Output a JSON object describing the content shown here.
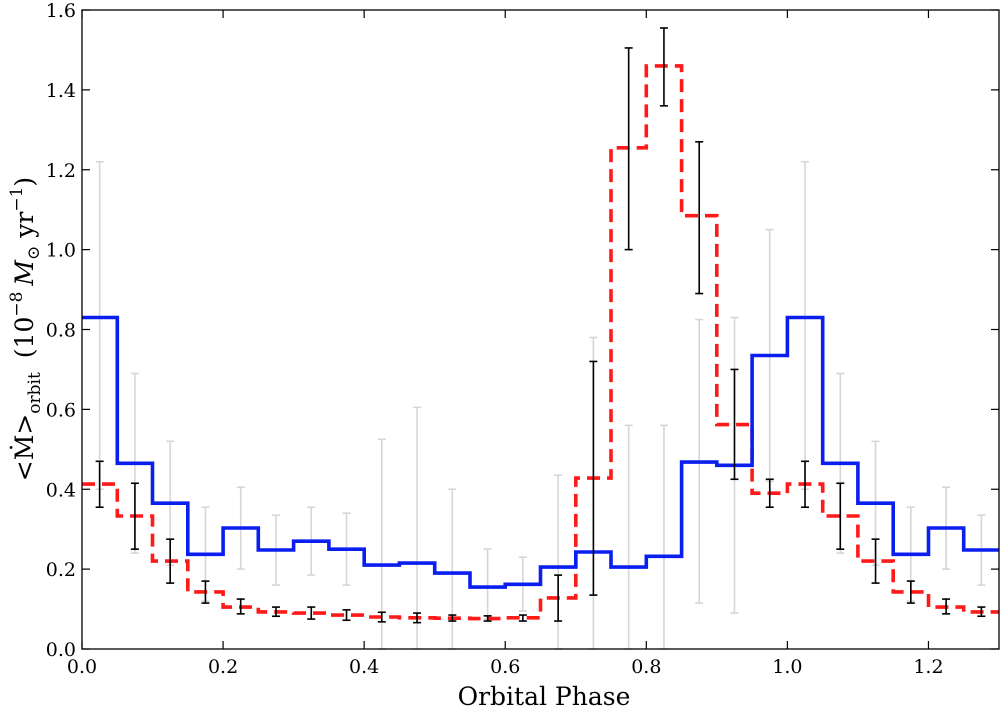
{
  "chart_data": {
    "type": "line",
    "xlabel": "Orbital Phase",
    "ylabel": {
      "main": "<Ṁ>",
      "sub": "orbit",
      "units_open": "(10",
      "units_exp": "−8",
      "units_mass": "M",
      "units_sun": "⊙",
      "units_yr": "yr",
      "units_yr_exp": "−1",
      "units_close": ")"
    },
    "xlim": [
      0.0,
      1.3
    ],
    "ylim": [
      0.0,
      1.6
    ],
    "x_ticks": [
      0.0,
      0.2,
      0.4,
      0.6,
      0.8,
      1.0,
      1.2
    ],
    "x_tick_labels": [
      "0.0",
      "0.2",
      "0.4",
      "0.6",
      "0.8",
      "1.0",
      "1.2"
    ],
    "y_ticks": [
      0.0,
      0.2,
      0.4,
      0.6,
      0.8,
      1.0,
      1.2,
      1.4,
      1.6
    ],
    "y_tick_labels": [
      "0.0",
      "0.2",
      "0.4",
      "0.6",
      "0.8",
      "1.0",
      "1.2",
      "1.4",
      "1.6"
    ],
    "grid": false,
    "legend": "none",
    "series": [
      {
        "style": "solid-step",
        "color": "#0a1ef0",
        "bins": [
          0.0,
          0.05,
          0.1,
          0.15,
          0.2,
          0.25,
          0.3,
          0.35,
          0.4,
          0.45,
          0.5,
          0.55,
          0.6,
          0.65,
          0.7,
          0.75,
          0.8,
          0.85,
          0.9,
          0.95,
          1.0,
          1.05,
          1.1,
          1.15,
          1.2,
          1.25,
          1.3
        ],
        "values": [
          0.83,
          0.465,
          0.365,
          0.237,
          0.303,
          0.248,
          0.27,
          0.25,
          0.21,
          0.215,
          0.19,
          0.155,
          0.162,
          0.205,
          0.243,
          0.205,
          0.232,
          0.468,
          0.46,
          0.735,
          0.83,
          0.465,
          0.365,
          0.237,
          0.303,
          0.248
        ]
      },
      {
        "style": "dashed-step",
        "color": "#ff1a1a",
        "bins": [
          0.0,
          0.05,
          0.1,
          0.15,
          0.2,
          0.25,
          0.3,
          0.35,
          0.4,
          0.45,
          0.5,
          0.55,
          0.6,
          0.65,
          0.7,
          0.75,
          0.8,
          0.85,
          0.9,
          0.95,
          1.0,
          1.05,
          1.1,
          1.15,
          1.2,
          1.25,
          1.3
        ],
        "values": [
          0.413,
          0.333,
          0.22,
          0.143,
          0.105,
          0.093,
          0.09,
          0.085,
          0.08,
          0.078,
          0.077,
          0.076,
          0.078,
          0.128,
          0.428,
          1.255,
          1.46,
          1.085,
          0.562,
          0.39,
          0.413,
          0.333,
          0.22,
          0.143,
          0.105,
          0.093
        ]
      }
    ],
    "error_bars": [
      {
        "color": "#d6d6d6",
        "points": [
          {
            "x": 0.025,
            "low": 0.4,
            "high": 1.22
          },
          {
            "x": 0.075,
            "low": 0.24,
            "high": 0.69
          },
          {
            "x": 0.125,
            "low": 0.21,
            "high": 0.52
          },
          {
            "x": 0.175,
            "low": 0.12,
            "high": 0.355
          },
          {
            "x": 0.225,
            "low": 0.2,
            "high": 0.405
          },
          {
            "x": 0.275,
            "low": 0.16,
            "high": 0.335
          },
          {
            "x": 0.325,
            "low": 0.185,
            "high": 0.355
          },
          {
            "x": 0.375,
            "low": 0.16,
            "high": 0.34
          },
          {
            "x": 0.425,
            "low": 0.0,
            "high": 0.525
          },
          {
            "x": 0.475,
            "low": 0.0,
            "high": 0.605
          },
          {
            "x": 0.525,
            "low": 0.0,
            "high": 0.4
          },
          {
            "x": 0.575,
            "low": 0.075,
            "high": 0.25
          },
          {
            "x": 0.625,
            "low": 0.095,
            "high": 0.23
          },
          {
            "x": 0.675,
            "low": 0.0,
            "high": 0.435
          },
          {
            "x": 0.725,
            "low": 0.0,
            "high": 0.78
          },
          {
            "x": 0.775,
            "low": 0.0,
            "high": 0.56
          },
          {
            "x": 0.825,
            "low": 0.0,
            "high": 0.56
          },
          {
            "x": 0.875,
            "low": 0.115,
            "high": 0.825
          },
          {
            "x": 0.925,
            "low": 0.09,
            "high": 0.83
          },
          {
            "x": 0.975,
            "low": 0.42,
            "high": 1.05
          },
          {
            "x": 1.025,
            "low": 0.4,
            "high": 1.22
          },
          {
            "x": 1.075,
            "low": 0.24,
            "high": 0.69
          },
          {
            "x": 1.125,
            "low": 0.21,
            "high": 0.52
          },
          {
            "x": 1.175,
            "low": 0.12,
            "high": 0.355
          },
          {
            "x": 1.225,
            "low": 0.2,
            "high": 0.405
          },
          {
            "x": 1.275,
            "low": 0.16,
            "high": 0.335
          }
        ]
      },
      {
        "color": "#000000",
        "points": [
          {
            "x": 0.025,
            "low": 0.355,
            "high": 0.47
          },
          {
            "x": 0.075,
            "low": 0.25,
            "high": 0.415
          },
          {
            "x": 0.125,
            "low": 0.165,
            "high": 0.275
          },
          {
            "x": 0.175,
            "low": 0.115,
            "high": 0.17
          },
          {
            "x": 0.225,
            "low": 0.088,
            "high": 0.125
          },
          {
            "x": 0.275,
            "low": 0.082,
            "high": 0.105
          },
          {
            "x": 0.325,
            "low": 0.075,
            "high": 0.105
          },
          {
            "x": 0.375,
            "low": 0.072,
            "high": 0.098
          },
          {
            "x": 0.425,
            "low": 0.068,
            "high": 0.092
          },
          {
            "x": 0.475,
            "low": 0.066,
            "high": 0.09
          },
          {
            "x": 0.525,
            "low": 0.07,
            "high": 0.085
          },
          {
            "x": 0.575,
            "low": 0.07,
            "high": 0.083
          },
          {
            "x": 0.625,
            "low": 0.07,
            "high": 0.085
          },
          {
            "x": 0.675,
            "low": 0.07,
            "high": 0.185
          },
          {
            "x": 0.725,
            "low": 0.135,
            "high": 0.72
          },
          {
            "x": 0.775,
            "low": 1.0,
            "high": 1.505
          },
          {
            "x": 0.825,
            "low": 1.36,
            "high": 1.555
          },
          {
            "x": 0.875,
            "low": 0.89,
            "high": 1.27
          },
          {
            "x": 0.925,
            "low": 0.425,
            "high": 0.7
          },
          {
            "x": 0.975,
            "low": 0.355,
            "high": 0.425
          },
          {
            "x": 1.025,
            "low": 0.355,
            "high": 0.47
          },
          {
            "x": 1.075,
            "low": 0.25,
            "high": 0.415
          },
          {
            "x": 1.125,
            "low": 0.165,
            "high": 0.275
          },
          {
            "x": 1.175,
            "low": 0.115,
            "high": 0.17
          },
          {
            "x": 1.225,
            "low": 0.088,
            "high": 0.125
          },
          {
            "x": 1.275,
            "low": 0.082,
            "high": 0.105
          }
        ]
      }
    ]
  }
}
